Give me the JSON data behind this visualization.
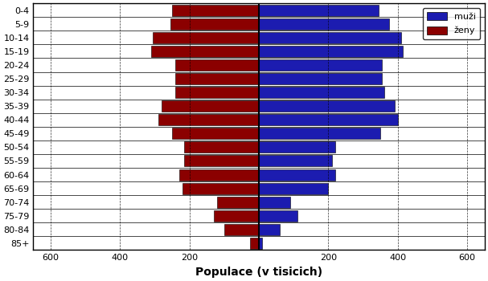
{
  "age_groups": [
    "0-4",
    "5-9",
    "10-14",
    "15-19",
    "20-24",
    "25-29",
    "30-34",
    "35-39",
    "40-44",
    "45-49",
    "50-54",
    "55-59",
    "60-64",
    "65-69",
    "70-74",
    "75-79",
    "80-84",
    "85+"
  ],
  "women": [
    250,
    255,
    305,
    310,
    240,
    240,
    240,
    280,
    290,
    250,
    215,
    215,
    230,
    220,
    120,
    130,
    100,
    25
  ],
  "men": [
    345,
    375,
    410,
    415,
    355,
    355,
    360,
    390,
    400,
    350,
    220,
    210,
    220,
    200,
    90,
    110,
    60,
    10
  ],
  "women_color": "#8B0000",
  "men_color": "#1C1CB0",
  "bar_edge_color": "#000000",
  "background_color": "#ffffff",
  "xlabel": "Populace (v tisicich)",
  "xlim": 650,
  "legend_muzi": "muži",
  "legend_zeny": "ženy",
  "xlabel_fontsize": 10,
  "tick_fontsize": 8,
  "label_fontsize": 8
}
